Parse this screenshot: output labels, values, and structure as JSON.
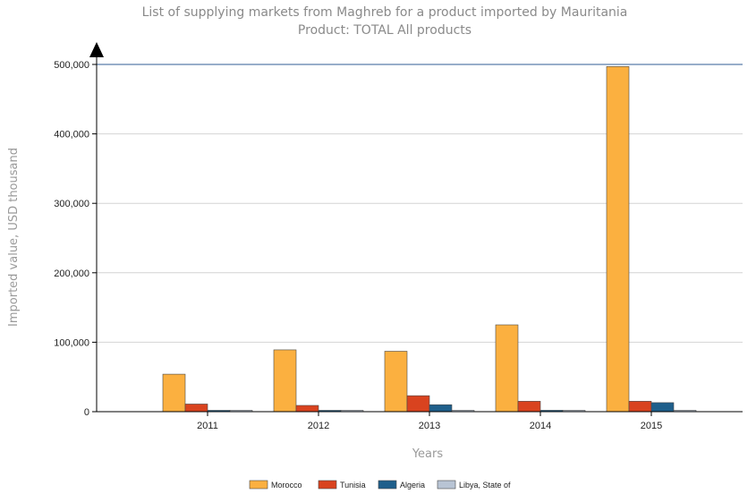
{
  "chart_data": {
    "type": "bar",
    "title": "List of supplying markets from Maghreb for a product imported by Mauritania",
    "subtitle": "Product: TOTAL All products",
    "xlabel": "Years",
    "ylabel": "Imported value, USD thousand",
    "categories": [
      "2011",
      "2012",
      "2013",
      "2014",
      "2015"
    ],
    "ylim": [
      0,
      500000
    ],
    "yticks": [
      "0",
      "100,000",
      "200,000",
      "300,000",
      "400,000",
      "500,000"
    ],
    "ytick_values": [
      0,
      100000,
      200000,
      300000,
      400000,
      500000
    ],
    "grid": true,
    "legend_position": "bottom",
    "series": [
      {
        "name": "Morocco",
        "color": "#FBB040",
        "values": [
          54000,
          89000,
          87000,
          125000,
          497000
        ]
      },
      {
        "name": "Tunisia",
        "color": "#D9431F",
        "values": [
          11000,
          9000,
          23000,
          15000,
          15000
        ]
      },
      {
        "name": "Algeria",
        "color": "#1F5F8B",
        "values": [
          1000,
          1000,
          10000,
          2000,
          13000
        ]
      },
      {
        "name": "Libya, State of",
        "color": "#B8C4D4",
        "values": [
          0,
          0,
          0,
          0,
          0
        ]
      }
    ]
  }
}
